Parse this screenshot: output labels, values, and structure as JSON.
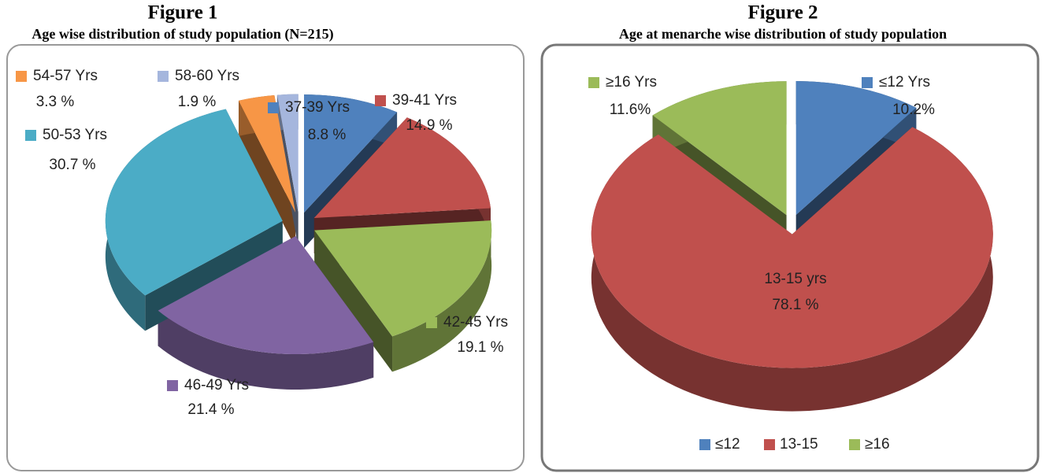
{
  "chart_data": [
    {
      "type": "pie",
      "title": "Figure 1",
      "subtitle": "Age wise distribution of study population (N=215)",
      "categories": [
        "37-39 Yrs",
        "39-41  Yrs",
        "42-45  Yrs",
        "46-49  Yrs",
        "50-53 Yrs",
        "54-57 Yrs",
        "58-60 Yrs"
      ],
      "values": [
        8.8,
        14.9,
        19.1,
        21.4,
        30.7,
        3.3,
        1.9
      ],
      "value_labels": [
        "8.8 %",
        "14.9 %",
        "19.1 %",
        "21.4 %",
        "30.7 %",
        "3.3 %",
        "1.9 %"
      ],
      "colors": [
        "#4f81bd",
        "#c0504d",
        "#9bbb59",
        "#8064a2",
        "#4bacc6",
        "#f79646",
        "#a5b6dd"
      ]
    },
    {
      "type": "pie",
      "title": "Figure 2",
      "subtitle": "Age at menarche wise distribution of study population",
      "categories": [
        "≤12 Yrs",
        "13-15 yrs",
        "≥16 Yrs"
      ],
      "values": [
        10.2,
        78.1,
        11.6
      ],
      "value_labels": [
        "10.2%",
        "78.1 %",
        "11.6%"
      ],
      "colors": [
        "#4f81bd",
        "#c0504d",
        "#9bbb59"
      ],
      "legend": [
        "≤12",
        "13-15",
        "≥16"
      ]
    }
  ]
}
